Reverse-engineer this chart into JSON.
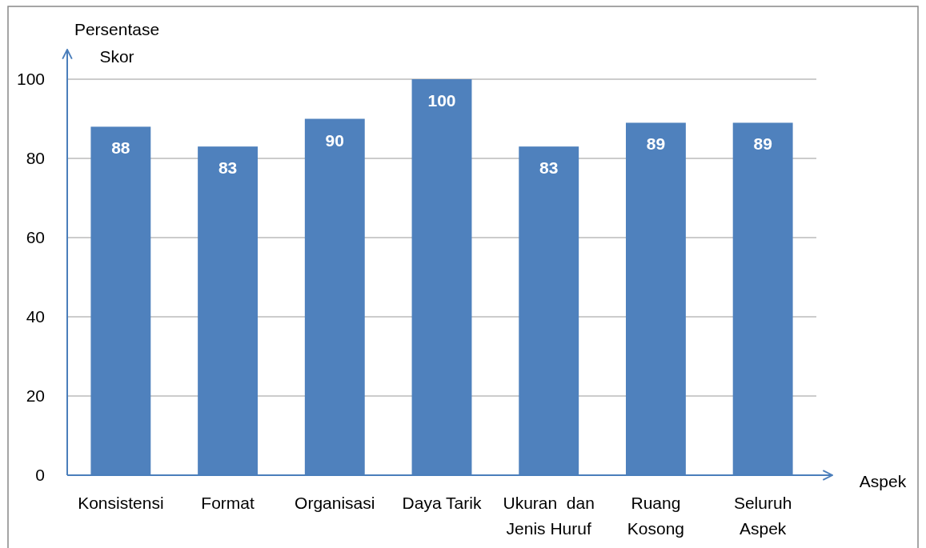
{
  "chart_data": {
    "type": "bar",
    "xlabel": "Aspek",
    "ylabel": "Persentase\nSkor",
    "categories": [
      "Konsistensi",
      "Format",
      "Organisasi",
      "Daya Tarik",
      "Ukuran  dan\nJenis Huruf",
      "Ruang\nKosong",
      "Seluruh\nAspek"
    ],
    "values": [
      88,
      83,
      90,
      100,
      83,
      89,
      89
    ],
    "color": "#4f81bd",
    "ylim": [
      0,
      100
    ],
    "yticks": [
      0,
      20,
      40,
      60,
      80,
      100
    ],
    "grid": "y",
    "data_labels": true
  }
}
